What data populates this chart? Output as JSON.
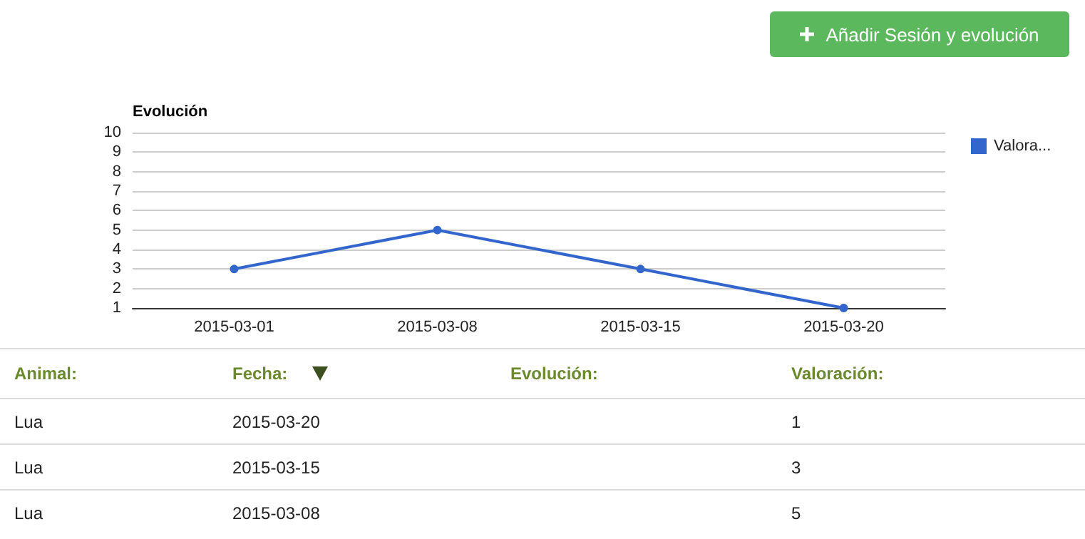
{
  "chart_data": {
    "type": "line",
    "title": "Evolución",
    "categories": [
      "2015-03-01",
      "2015-03-08",
      "2015-03-15",
      "2015-03-20"
    ],
    "series": [
      {
        "name": "Valora...",
        "color": "#3366cc",
        "values": [
          3,
          5,
          3,
          1
        ]
      }
    ],
    "ylim": [
      1,
      10
    ],
    "yticks": [
      1,
      2,
      3,
      4,
      5,
      6,
      7,
      8,
      9,
      10
    ],
    "grid": "y",
    "legend": "top right",
    "marker": "circle",
    "line_style": "solid",
    "annotations": [
      "Añadir Sesión y evolución",
      "Animal:",
      "Fecha:",
      "Evolución:",
      "Valoración:",
      "Lua",
      "2015-03-20",
      "1",
      "Lua",
      "2015-03-15",
      "3",
      "Lua",
      "2015-03-08",
      "5"
    ]
  }
}
